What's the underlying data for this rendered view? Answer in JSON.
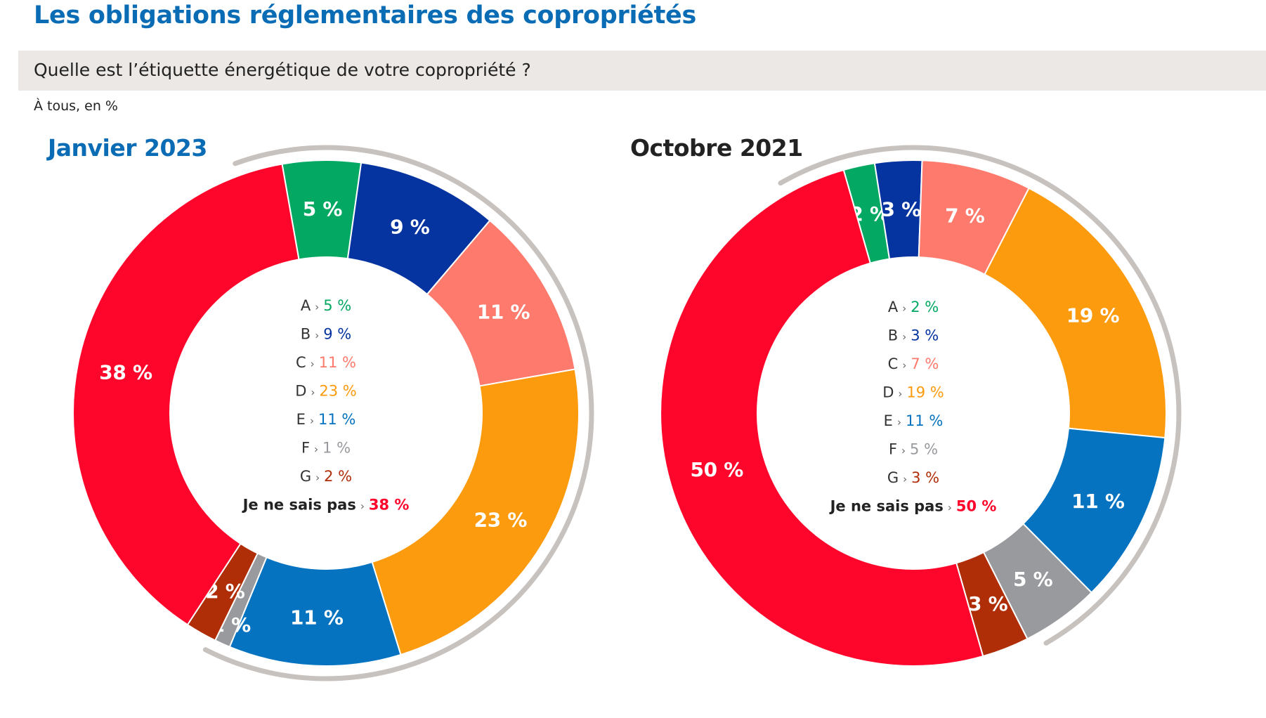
{
  "header": {
    "title": "Les obligations réglementaires des copropriétés",
    "question": "Quelle est l’étiquette énergétique de votre copropriété ?",
    "base": "À tous, en %"
  },
  "chart_data": [
    {
      "type": "pie",
      "variant": "donut",
      "title": "Janvier 2023",
      "title_color": "#0a6cb4",
      "categories": [
        "A",
        "B",
        "C",
        "D",
        "E",
        "F",
        "G",
        "Je ne sais pas"
      ],
      "values": [
        5,
        9,
        11,
        23,
        11,
        1,
        2,
        38
      ],
      "labels": [
        "5 %",
        "9 %",
        "11 %",
        "23 %",
        "11 %",
        "1 %",
        "2 %",
        "38 %"
      ],
      "legend": [
        "A › 5 %",
        "B › 9 %",
        "C › 11 %",
        "D › 23 %",
        "E › 11 %",
        "F › 1 %",
        "G › 2 %",
        "Je ne sais pas › 38 %"
      ],
      "unit": "%"
    },
    {
      "type": "pie",
      "variant": "donut",
      "title": "Octobre 2021",
      "title_color": "#222222",
      "categories": [
        "A",
        "B",
        "C",
        "D",
        "E",
        "F",
        "G",
        "Je ne sais pas"
      ],
      "values": [
        2,
        3,
        7,
        19,
        11,
        5,
        3,
        50
      ],
      "labels": [
        "2 %",
        "3 %",
        "7 %",
        "19 %",
        "11 %",
        "5 %",
        "3 %",
        "50 %"
      ],
      "legend": [
        "A › 2 %",
        "B › 3 %",
        "C › 7 %",
        "D › 19 %",
        "E › 11 %",
        "F › 5 %",
        "G › 3 %",
        "Je ne sais pas › 50 %"
      ],
      "unit": "%"
    }
  ],
  "colors": {
    "A": "#03a862",
    "B": "#0534a0",
    "C": "#fe7a6c",
    "D": "#fd9b0e",
    "E": "#0573c0",
    "F": "#989a9e",
    "G": "#b02e07",
    "Je ne sais pas": "#fe062b",
    "arc": "#c8c2bf"
  }
}
